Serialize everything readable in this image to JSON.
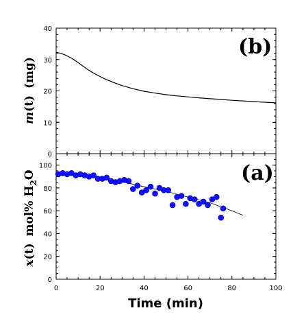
{
  "chart_data": [
    {
      "panel": "(b)",
      "type": "line",
      "ylabel": {
        "var": "m",
        "arg": "(t)",
        "unit": "(mg)"
      },
      "xlim": [
        0,
        100
      ],
      "ylim": [
        0,
        40
      ],
      "yticks": [
        "0",
        "10",
        "20",
        "30",
        "40"
      ],
      "color": "#000000",
      "series": [
        {
          "x": [
            0,
            2,
            4,
            6,
            8,
            10,
            12,
            14,
            16,
            18,
            20,
            22,
            24,
            26,
            28,
            30,
            35,
            40,
            45,
            50,
            55,
            60,
            65,
            70,
            75,
            80,
            85,
            90,
            95,
            100
          ],
          "values": [
            32.3,
            32.0,
            31.5,
            30.8,
            30.0,
            29.0,
            28.0,
            27.0,
            26.1,
            25.3,
            24.6,
            23.9,
            23.3,
            22.7,
            22.2,
            21.7,
            20.7,
            19.9,
            19.3,
            18.8,
            18.4,
            18.1,
            17.8,
            17.5,
            17.3,
            17.0,
            16.8,
            16.6,
            16.4,
            16.2
          ]
        }
      ]
    },
    {
      "panel": "(a)",
      "type": "scatter",
      "ylabel": {
        "var": "x",
        "arg": "(t)",
        "unit": "mol% H",
        "sub": "2",
        "unit2": "O"
      },
      "xlabel": "Time  (min)",
      "xlim": [
        0,
        100
      ],
      "ylim": [
        0,
        110
      ],
      "xticks": [
        "0",
        "20",
        "40",
        "60",
        "80",
        "100"
      ],
      "yticks": [
        "0",
        "20",
        "40",
        "60",
        "80",
        "100"
      ],
      "marker_color": "#1010ff",
      "points_x": [
        1,
        3,
        5,
        7,
        9,
        11,
        13,
        15,
        17,
        19,
        21,
        23,
        25,
        27,
        29,
        31,
        33,
        35,
        37,
        39,
        41,
        43,
        45,
        47,
        49,
        51,
        53,
        55,
        57,
        59,
        61,
        63,
        65,
        67,
        69,
        71,
        73,
        75,
        76
      ],
      "points_y": [
        92,
        93,
        92,
        93,
        91,
        92,
        91,
        90,
        91,
        88,
        88,
        89,
        86,
        85,
        86,
        87,
        86,
        79,
        82,
        76,
        78,
        81,
        75,
        80,
        78,
        78,
        65,
        72,
        73,
        66,
        71,
        70,
        66,
        68,
        65,
        70,
        72,
        54,
        62
      ],
      "fit_x": [
        0,
        10,
        20,
        30,
        40,
        50,
        60,
        70,
        80,
        85
      ],
      "fit_y": [
        94,
        92,
        89,
        85.5,
        81,
        77,
        72,
        67,
        60,
        56
      ]
    }
  ]
}
